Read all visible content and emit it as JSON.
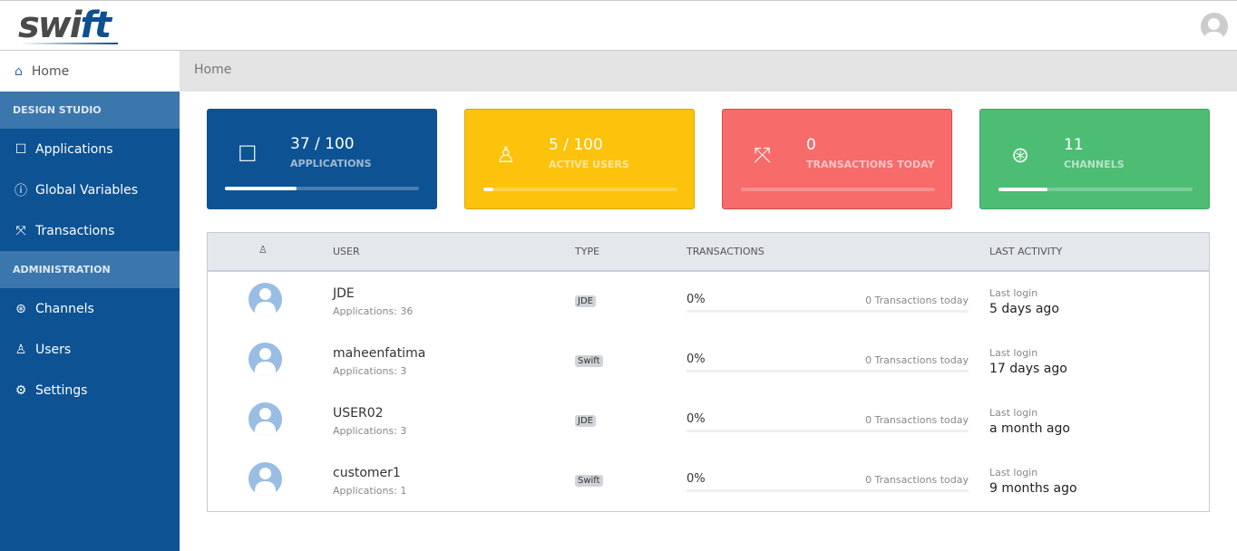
{
  "logo": {
    "text_a": "swi",
    "text_b": "ft"
  },
  "sidebar": {
    "home": "Home",
    "sections": [
      {
        "title": "DESIGN STUDIO",
        "items": [
          {
            "label": "Applications",
            "icon": "calendar-icon"
          },
          {
            "label": "Global Variables",
            "icon": "info-icon"
          },
          {
            "label": "Transactions",
            "icon": "expand-icon"
          }
        ]
      },
      {
        "title": "ADMINISTRATION",
        "items": [
          {
            "label": "Channels",
            "icon": "lifebuoy-icon"
          },
          {
            "label": "Users",
            "icon": "user-icon"
          },
          {
            "label": "Settings",
            "icon": "gear-icon"
          }
        ]
      }
    ]
  },
  "breadcrumb": "Home",
  "cards": [
    {
      "value": "37 / 100",
      "label": "APPLICATIONS",
      "progress": 37,
      "color": "#0d5293",
      "icon": "calendar-icon"
    },
    {
      "value": "5 / 100",
      "label": "ACTIVE USERS",
      "progress": 5,
      "color": "#fdc20c",
      "icon": "user-icon"
    },
    {
      "value": "0",
      "label": "TRANSACTIONS TODAY",
      "progress": 0,
      "color": "#f76b6b",
      "icon": "expand-icon"
    },
    {
      "value": "11",
      "label": "CHANNELS",
      "progress": 25,
      "color": "#4dbd74",
      "icon": "lifebuoy-icon"
    }
  ],
  "table": {
    "headers": {
      "user": "USER",
      "type": "TYPE",
      "transactions": "TRANSACTIONS",
      "last": "LAST ACTIVITY"
    },
    "rows": [
      {
        "name": "JDE",
        "apps": "Applications: 36",
        "type": "JDE",
        "pct": "0%",
        "tx": "0 Transactions today",
        "last_label": "Last login",
        "last": "5 days ago"
      },
      {
        "name": "maheenfatima",
        "apps": "Applications: 3",
        "type": "Swift",
        "pct": "0%",
        "tx": "0 Transactions today",
        "last_label": "Last login",
        "last": "17 days ago"
      },
      {
        "name": "USER02",
        "apps": "Applications: 3",
        "type": "JDE",
        "pct": "0%",
        "tx": "0 Transactions today",
        "last_label": "Last login",
        "last": "a month ago"
      },
      {
        "name": "customer1",
        "apps": "Applications: 1",
        "type": "Swift",
        "pct": "0%",
        "tx": "0 Transactions today",
        "last_label": "Last login",
        "last": "9 months ago"
      }
    ]
  }
}
